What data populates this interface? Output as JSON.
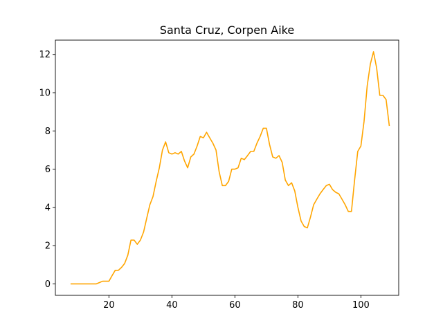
{
  "chart_data": {
    "type": "line",
    "title": "Santa Cruz, Corpen Aike",
    "xlabel": "",
    "ylabel": "",
    "xlim": [
      3,
      112
    ],
    "ylim": [
      -0.6,
      12.75
    ],
    "xticks": [
      20,
      40,
      60,
      80,
      100
    ],
    "yticks": [
      0,
      2,
      4,
      6,
      8,
      10,
      12
    ],
    "grid": false,
    "series": [
      {
        "color": "#ffa500",
        "x": [
          8,
          9,
          10,
          11,
          12,
          13,
          14,
          15,
          16,
          17,
          18,
          19,
          20,
          21,
          22,
          23,
          24,
          25,
          26,
          27,
          28,
          29,
          30,
          31,
          32,
          33,
          34,
          35,
          36,
          37,
          38,
          39,
          40,
          41,
          42,
          43,
          44,
          45,
          46,
          47,
          48,
          49,
          50,
          51,
          52,
          53,
          54,
          55,
          56,
          57,
          58,
          59,
          60,
          61,
          62,
          63,
          64,
          65,
          66,
          67,
          68,
          69,
          70,
          71,
          72,
          73,
          74,
          75,
          76,
          77,
          78,
          79,
          80,
          81,
          82,
          83,
          84,
          85,
          86,
          87,
          88,
          89,
          90,
          91,
          92,
          93,
          94,
          95,
          96,
          97,
          98,
          99,
          100,
          101,
          102,
          103,
          104,
          105,
          106,
          107,
          108,
          109
        ],
        "y": [
          0,
          0,
          0,
          0,
          0,
          0,
          0,
          0,
          0,
          0.07,
          0.14,
          0.14,
          0.14,
          0.43,
          0.71,
          0.71,
          0.86,
          1.07,
          1.5,
          2.29,
          2.29,
          2.07,
          2.29,
          2.71,
          3.43,
          4.14,
          4.57,
          5.36,
          6.07,
          7,
          7.43,
          6.86,
          6.79,
          6.86,
          6.79,
          6.93,
          6.43,
          6.07,
          6.64,
          6.79,
          7.21,
          7.71,
          7.64,
          7.93,
          7.64,
          7.36,
          7,
          5.86,
          5.14,
          5.14,
          5.36,
          6,
          6,
          6.07,
          6.57,
          6.5,
          6.71,
          6.93,
          6.93,
          7.36,
          7.71,
          8.14,
          8.14,
          7.29,
          6.64,
          6.57,
          6.71,
          6.36,
          5.43,
          5.14,
          5.29,
          4.86,
          4,
          3.29,
          3,
          2.93,
          3.5,
          4.14,
          4.43,
          4.71,
          4.93,
          5.14,
          5.21,
          4.93,
          4.79,
          4.71,
          4.43,
          4.14,
          3.79,
          3.79,
          5.43,
          6.93,
          7.21,
          8.5,
          10.36,
          11.5,
          12.14,
          11.29,
          9.86,
          9.86,
          9.64,
          8.29
        ]
      }
    ]
  }
}
